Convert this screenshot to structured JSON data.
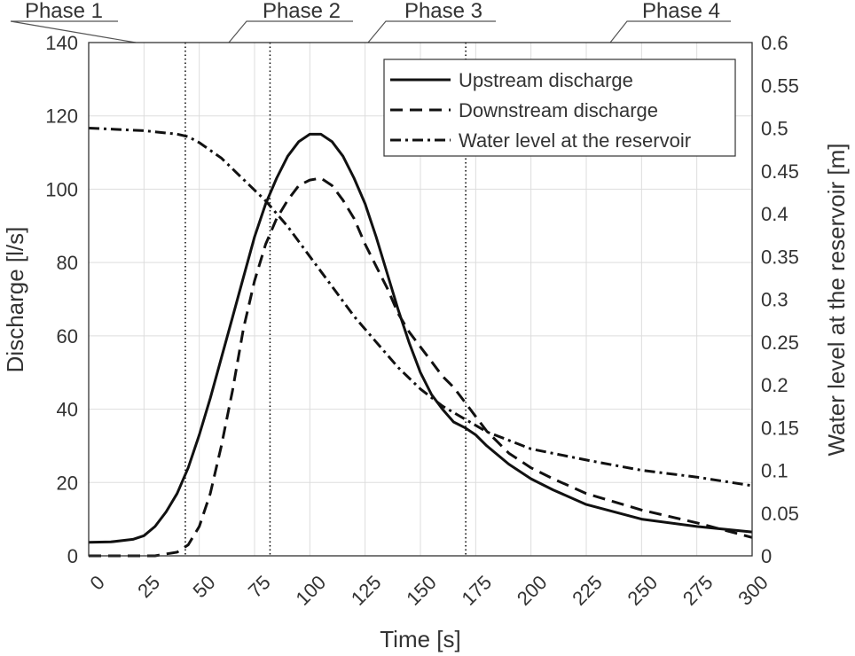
{
  "chart_data": {
    "type": "line",
    "xlabel": "Time [s]",
    "ylabel": "Discharge [l/s]",
    "y2label": "Water level at the reservoir [m]",
    "xlim": [
      0,
      300
    ],
    "ylim": [
      0,
      140
    ],
    "y2lim": [
      0,
      0.6
    ],
    "xticks": [
      0,
      25,
      50,
      75,
      100,
      125,
      150,
      175,
      200,
      225,
      250,
      275,
      300
    ],
    "yticks": [
      0,
      20,
      40,
      60,
      80,
      100,
      120,
      140
    ],
    "y2ticks": [
      "0",
      "0.05",
      "0.1",
      "0.15",
      "0.2",
      "0.25",
      "0.3",
      "0.35",
      "0.4",
      "0.45",
      "0.5",
      "0.55",
      "0.6"
    ],
    "grid": true,
    "legend_position": "top-right",
    "phase_boundaries": [
      43.7,
      82,
      170.5
    ],
    "phases": [
      "Phase 1",
      "Phase 2",
      "Phase 3",
      "Phase 4"
    ],
    "series": [
      {
        "name": "Upstream discharge",
        "axis": "left",
        "style": "solid",
        "x": [
          0,
          10,
          20,
          25,
          30,
          35,
          40,
          45,
          50,
          55,
          60,
          65,
          70,
          75,
          80,
          85,
          90,
          95,
          100,
          105,
          110,
          115,
          120,
          125,
          130,
          135,
          140,
          145,
          150,
          155,
          160,
          165,
          170,
          175,
          180,
          190,
          200,
          210,
          225,
          250,
          275,
          300
        ],
        "y": [
          3.7,
          3.8,
          4.5,
          5.5,
          8,
          12,
          17,
          24,
          33,
          43,
          54,
          65,
          76,
          87,
          96,
          103,
          109,
          113,
          115,
          115,
          113,
          109,
          103,
          96,
          87,
          77,
          67,
          58,
          50,
          44,
          40,
          36.5,
          35,
          33,
          30,
          25,
          21,
          18,
          14,
          10,
          8,
          6.5
        ]
      },
      {
        "name": "Downstream discharge",
        "axis": "left",
        "style": "dashed",
        "x": [
          0,
          30,
          35,
          40,
          45,
          50,
          55,
          60,
          65,
          70,
          75,
          80,
          85,
          90,
          95,
          100,
          105,
          110,
          115,
          120,
          125,
          130,
          135,
          140,
          145,
          150,
          155,
          160,
          165,
          170,
          175,
          180,
          185,
          190,
          200,
          210,
          225,
          250,
          275,
          300
        ],
        "y": [
          0,
          0,
          0.5,
          1,
          3,
          8,
          17,
          30,
          45,
          62,
          75,
          85,
          92,
          97,
          101,
          102.5,
          103,
          101,
          97,
          92,
          85,
          79,
          73,
          66,
          61,
          57,
          53,
          49,
          46,
          42,
          38,
          34,
          31,
          28,
          24,
          21,
          17,
          12.5,
          9,
          5
        ]
      },
      {
        "name": "Water level at the reservoir",
        "axis": "right",
        "style": "dash-dot",
        "x": [
          0,
          25,
          40,
          45,
          50,
          60,
          70,
          80,
          90,
          100,
          110,
          120,
          130,
          140,
          150,
          160,
          170,
          180,
          190,
          200,
          225,
          250,
          275,
          300
        ],
        "y": [
          0.5,
          0.497,
          0.493,
          0.49,
          0.483,
          0.465,
          0.44,
          0.415,
          0.385,
          0.35,
          0.315,
          0.28,
          0.25,
          0.22,
          0.195,
          0.175,
          0.16,
          0.145,
          0.135,
          0.125,
          0.112,
          0.1,
          0.092,
          0.082
        ]
      }
    ]
  }
}
